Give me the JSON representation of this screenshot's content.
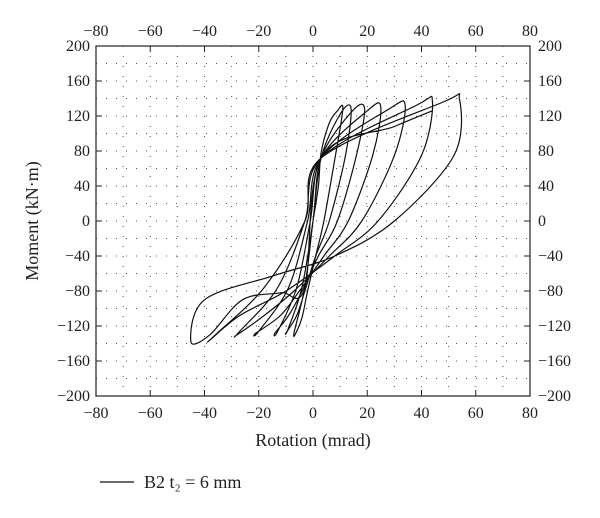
{
  "chart_data": {
    "type": "line",
    "title": "",
    "xlabel": "Rotation (mrad)",
    "ylabel": "Moment (kN·m)",
    "xlim": [
      -80,
      80
    ],
    "ylim": [
      -200,
      200
    ],
    "x_ticks": [
      -80,
      -60,
      -40,
      -20,
      0,
      20,
      40,
      60,
      80
    ],
    "y_ticks": [
      -200,
      -160,
      -120,
      -80,
      -40,
      0,
      40,
      80,
      120,
      160,
      200
    ],
    "x_tick_labels": [
      "−80",
      "−60",
      "−40",
      "−20",
      "0",
      "20",
      "40",
      "60",
      "80"
    ],
    "y_tick_labels": [
      "−200",
      "−160",
      "−120",
      "−80",
      "−40",
      "0",
      "40",
      "80",
      "120",
      "160",
      "200"
    ],
    "x_minor_grid": [
      -70,
      -50,
      -30,
      -10,
      10,
      30,
      50,
      70
    ],
    "y_minor_grid": [
      -180,
      -140,
      -100,
      -60,
      -20,
      20,
      60,
      100,
      140,
      180
    ],
    "grid": true,
    "grid_style": "dotted",
    "ticks_mirrored": true,
    "legend": {
      "position": "bottom-left",
      "text": "B2 t₂ = 6 mm"
    },
    "series": [
      {
        "color": "#111111",
        "x": [
          0,
          2,
          3,
          6,
          9,
          11,
          8,
          4,
          1,
          -2,
          -4,
          -6,
          -7,
          -3,
          0,
          3,
          10,
          14,
          12,
          6,
          1,
          -3,
          -6,
          -10,
          -9,
          -4,
          0,
          3,
          14,
          19,
          16,
          9,
          2,
          -4,
          -9,
          -14,
          -13,
          -6,
          -1,
          3,
          20,
          25,
          22,
          13,
          4,
          -5,
          -12,
          -21,
          -20,
          -9,
          -2,
          3,
          28,
          34,
          30,
          18,
          6,
          -7,
          -18,
          -28,
          -27,
          -13,
          -3,
          3,
          38,
          44,
          40,
          24,
          8,
          -10,
          -27,
          -38,
          -36,
          -18,
          -3,
          3,
          48,
          54,
          52,
          30,
          8,
          -14,
          -40,
          -45,
          -38,
          -26,
          -12,
          -3,
          3,
          30,
          44
        ],
        "y": [
          0,
          40,
          78,
          112,
          126,
          128,
          70,
          0,
          -40,
          -80,
          -110,
          -126,
          -128,
          -75,
          0,
          72,
          122,
          129,
          75,
          0,
          -40,
          -80,
          -108,
          -128,
          -122,
          -75,
          0,
          72,
          124,
          129,
          75,
          0,
          -40,
          -80,
          -108,
          -128,
          -126,
          -76,
          0,
          72,
          126,
          130,
          75,
          0,
          -40,
          -80,
          -108,
          -128,
          -126,
          -76,
          0,
          72,
          128,
          132,
          75,
          0,
          -40,
          -80,
          -108,
          -130,
          -126,
          -76,
          0,
          72,
          132,
          137,
          75,
          0,
          -40,
          -80,
          -108,
          -136,
          -130,
          -76,
          0,
          72,
          136,
          139,
          75,
          0,
          -40,
          -62,
          -90,
          -138,
          -130,
          -90,
          -82,
          -76,
          72,
          108,
          126
        ]
      }
    ]
  }
}
